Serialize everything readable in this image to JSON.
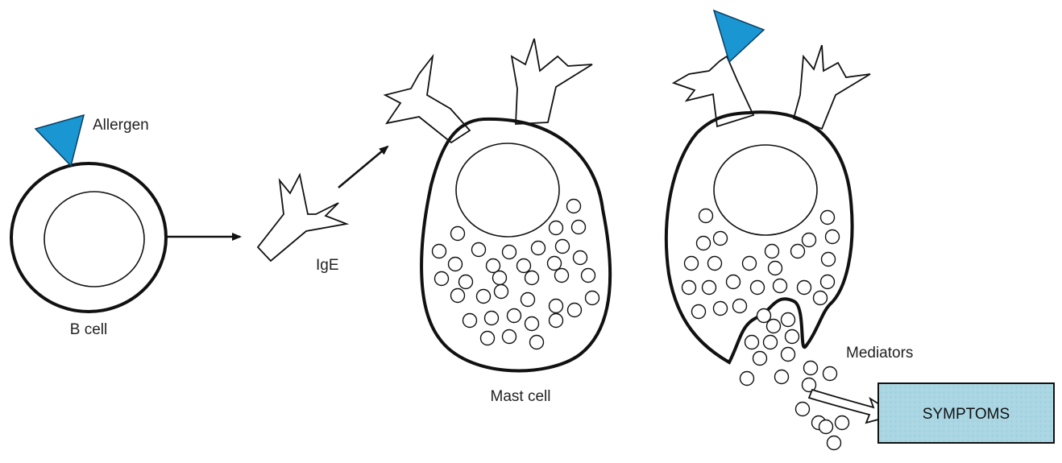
{
  "labels": {
    "allergen": "Allergen",
    "b_cell": "B cell",
    "ige": "IgE",
    "mast_cell": "Mast cell",
    "mediators": "Mediators",
    "symptoms": "SYMPTOMS"
  },
  "colors": {
    "allergen": "#1a96d2",
    "symptoms_box": "#a9d6e2",
    "outline": "#111111"
  }
}
